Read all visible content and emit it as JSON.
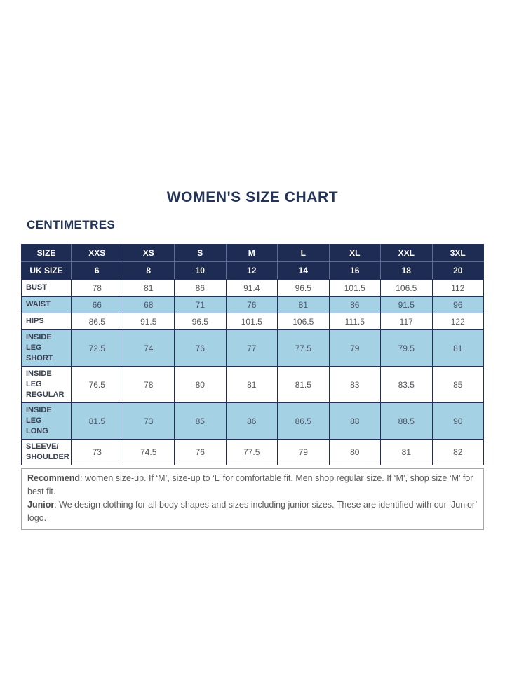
{
  "page": {
    "title": "WOMEN'S SIZE CHART",
    "unit_label": "CENTIMETRES"
  },
  "colors": {
    "navy_header": "#1e2b52",
    "light_blue_row": "#a5d1e5",
    "title_navy": "#233457",
    "value_text": "#55575c",
    "label_text": "#3a4152",
    "cell_border": "#242f58",
    "footnote_border": "#a6a6a6",
    "footnote_text": "#58595b"
  },
  "table": {
    "size_header": {
      "label": "SIZE",
      "sizes": [
        "XXS",
        "XS",
        "S",
        "M",
        "L",
        "XL",
        "XXL",
        "3XL"
      ]
    },
    "uk_size_row": {
      "label": "UK SIZE",
      "values": [
        "6",
        "8",
        "10",
        "12",
        "14",
        "16",
        "18",
        "20"
      ]
    },
    "rows": [
      {
        "label_lines": [
          "BUST"
        ],
        "shaded": false,
        "values": [
          "78",
          "81",
          "86",
          "91.4",
          "96.5",
          "101.5",
          "106.5",
          "112"
        ]
      },
      {
        "label_lines": [
          "WAIST"
        ],
        "shaded": true,
        "values": [
          "66",
          "68",
          "71",
          "76",
          "81",
          "86",
          "91.5",
          "96"
        ]
      },
      {
        "label_lines": [
          "HIPS"
        ],
        "shaded": false,
        "values": [
          "86.5",
          "91.5",
          "96.5",
          "101.5",
          "106.5",
          "111.5",
          "117",
          "122"
        ]
      },
      {
        "label_lines": [
          "INSIDE LEG",
          "SHORT"
        ],
        "shaded": true,
        "values": [
          "72.5",
          "74",
          "76",
          "77",
          "77.5",
          "79",
          "79.5",
          "81"
        ]
      },
      {
        "label_lines": [
          "INSIDE LEG",
          "REGULAR"
        ],
        "shaded": false,
        "values": [
          "76.5",
          "78",
          "80",
          "81",
          "81.5",
          "83",
          "83.5",
          "85"
        ]
      },
      {
        "label_lines": [
          "INSIDE LEG",
          "LONG"
        ],
        "shaded": true,
        "values": [
          "81.5",
          "73",
          "85",
          "86",
          "86.5",
          "88",
          "88.5",
          "90"
        ]
      },
      {
        "label_lines": [
          "SLEEVE/",
          "SHOULDER"
        ],
        "shaded": false,
        "values": [
          "73",
          "74.5",
          "76",
          "77.5",
          "79",
          "80",
          "81",
          "82"
        ]
      }
    ]
  },
  "footnote": {
    "line1_bold": "Recommend",
    "line1_rest": ": women size-up. If ‘M’, size-up to ‘L’ for comfortable fit. Men shop regular size. If ‘M’, shop size ‘M’ for best fit.",
    "line2_bold": "Junior",
    "line2_rest": ": We design clothing for all body shapes and sizes including junior sizes. These are identified with our ‘Junior’ logo."
  }
}
